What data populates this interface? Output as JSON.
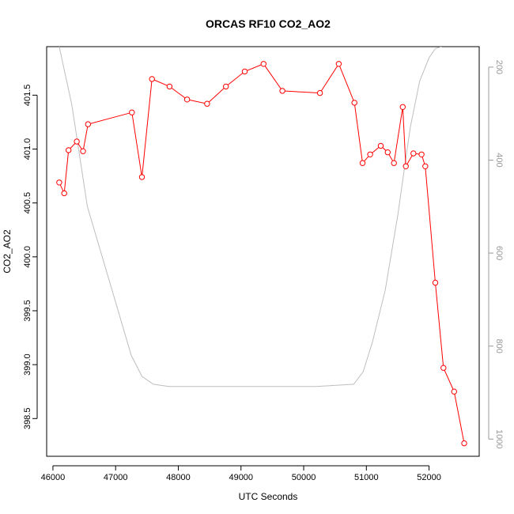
{
  "chart_data": {
    "type": "line",
    "title": "ORCAS RF10 CO2_AO2",
    "xlabel": "UTC Seconds",
    "ylabel": "CO2_AO2",
    "xlim": [
      45900,
      52800
    ],
    "ylim": [
      398.15,
      401.95
    ],
    "x_ticks": [
      46000,
      47000,
      48000,
      49000,
      50000,
      51000,
      52000
    ],
    "y_ticks": [
      398.5,
      399.0,
      399.5,
      400.0,
      400.5,
      401.0,
      401.5
    ],
    "y2_ticks": [
      200,
      400,
      600,
      800,
      1000
    ],
    "y2lim": [
      1037,
      156
    ],
    "colors": {
      "co2": "#ff0000",
      "pressure": "#bebebe",
      "right_axis": "#999999"
    },
    "series": [
      {
        "role": "co2",
        "x": [
          46100,
          46180,
          46250,
          46380,
          46480,
          46560,
          47260,
          47420,
          47580,
          47860,
          48140,
          48460,
          48760,
          49060,
          49360,
          49660,
          50260,
          50560,
          50810,
          50940,
          51060,
          51230,
          51340,
          51440,
          51580,
          51630,
          51750,
          51880,
          51940,
          52100,
          52230,
          52400,
          52560
        ],
        "y": [
          400.69,
          400.59,
          400.99,
          401.07,
          400.98,
          401.23,
          401.34,
          400.74,
          401.65,
          401.58,
          401.46,
          401.42,
          401.58,
          401.72,
          401.79,
          401.54,
          401.52,
          401.79,
          401.43,
          400.87,
          400.95,
          401.03,
          400.97,
          400.87,
          401.39,
          400.84,
          400.96,
          400.95,
          400.84,
          399.76,
          398.97,
          398.75,
          398.27
        ]
      },
      {
        "role": "pressure",
        "x": [
          46100,
          46300,
          46550,
          46900,
          47250,
          47420,
          47600,
          47850,
          48200,
          48800,
          49500,
          50200,
          50800,
          50950,
          51100,
          51300,
          51500,
          51700,
          51850,
          52000,
          52100,
          52200
        ],
        "y": [
          156,
          280,
          500,
          660,
          820,
          865,
          882,
          887,
          887,
          887,
          887,
          887,
          882,
          855,
          790,
          680,
          520,
          330,
          230,
          180,
          160,
          156
        ]
      }
    ]
  }
}
